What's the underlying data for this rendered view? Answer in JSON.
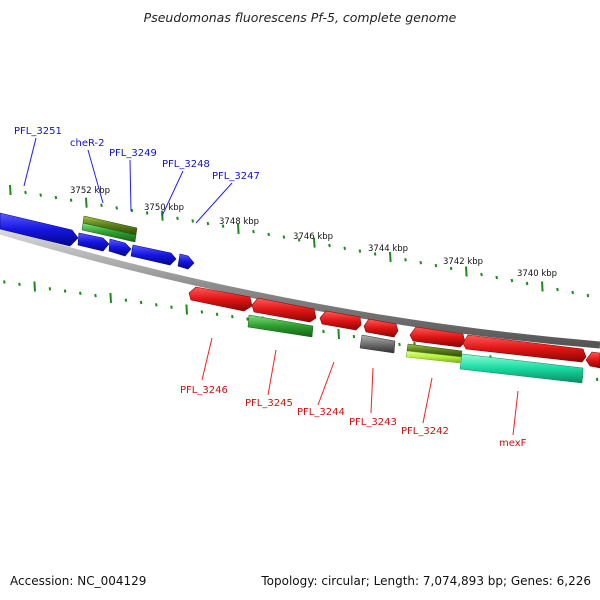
{
  "title": "Pseudomonas fluorescens Pf-5, complete genome",
  "footer": {
    "accession": "Accession: NC_004129",
    "topology": "Topology: circular; Length: 7,074,893 bp; Genes: 6,226"
  },
  "scale_labels": [
    "3752 kbp",
    "3750 kbp",
    "3748 kbp",
    "3746 kbp",
    "3744 kbp",
    "3742 kbp",
    "3740 kbp"
  ],
  "forward_genes": [
    {
      "label": "PFL_3251",
      "color": "#1010cc"
    },
    {
      "label": "cheR-2",
      "color": "#1010cc"
    },
    {
      "label": "PFL_3249",
      "color": "#1010cc"
    },
    {
      "label": "PFL_3248",
      "color": "#1010cc"
    },
    {
      "label": "PFL_3247",
      "color": "#1010cc"
    }
  ],
  "reverse_genes": [
    {
      "label": "PFL_3246",
      "color": "#cc1010"
    },
    {
      "label": "PFL_3245",
      "color": "#cc1010"
    },
    {
      "label": "PFL_3244",
      "color": "#cc1010"
    },
    {
      "label": "PFL_3243",
      "color": "#cc1010"
    },
    {
      "label": "PFL_3242",
      "color": "#cc1010"
    },
    {
      "label": "mexF",
      "color": "#cc1010"
    }
  ],
  "colors": {
    "forward_gene": "#1515e0",
    "reverse_gene": "#e01515",
    "cds_green": "#2e9e2e",
    "cds_olive": "#5a7d1a",
    "cds_lime": "#b4f03a",
    "cds_gray": "#707070",
    "cds_teal": "#19d9a0",
    "backbone": "#888888",
    "ticks": "#1a8a1a"
  }
}
